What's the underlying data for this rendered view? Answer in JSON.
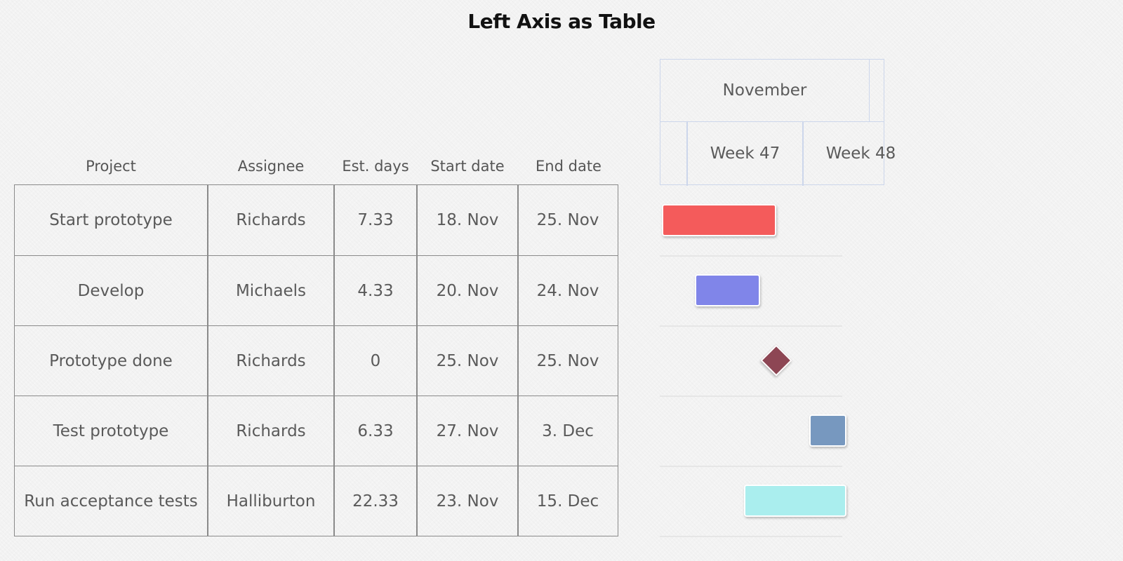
{
  "chart_data": {
    "type": "gantt",
    "title": "Left Axis as Table",
    "columns": [
      "Project",
      "Assignee",
      "Est. days",
      "Start date",
      "End date"
    ],
    "rows": [
      [
        "Start prototype",
        "Richards",
        "7.33",
        "18. Nov",
        "25. Nov"
      ],
      [
        "Develop",
        "Michaels",
        "4.33",
        "20. Nov",
        "24. Nov"
      ],
      [
        "Prototype done",
        "Richards",
        "0",
        "25. Nov",
        "25. Nov"
      ],
      [
        "Test prototype",
        "Richards",
        "6.33",
        "27. Nov",
        "3. Dec"
      ],
      [
        "Run acceptance tests",
        "Halliburton",
        "22.33",
        "23. Nov",
        "15. Dec"
      ]
    ],
    "tasks": [
      {
        "name": "Start prototype",
        "start": "2017-11-18",
        "end": "2017-11-25",
        "color": "#f45b5b",
        "milestone": false
      },
      {
        "name": "Develop",
        "start": "2017-11-20",
        "end": "2017-11-24",
        "color": "#8085e9",
        "milestone": false
      },
      {
        "name": "Prototype done",
        "start": "2017-11-25",
        "end": "2017-11-25",
        "color": "#8d4654",
        "milestone": true
      },
      {
        "name": "Test prototype",
        "start": "2017-11-27",
        "end": "2017-12-03",
        "color": "#7798bf",
        "milestone": false
      },
      {
        "name": "Run acceptance tests",
        "start": "2017-11-23",
        "end": "2017-12-15",
        "color": "#aaeeee",
        "milestone": false
      }
    ],
    "axis_month": "November",
    "axis_weeks": [
      "Week 47",
      "Week 48"
    ]
  }
}
